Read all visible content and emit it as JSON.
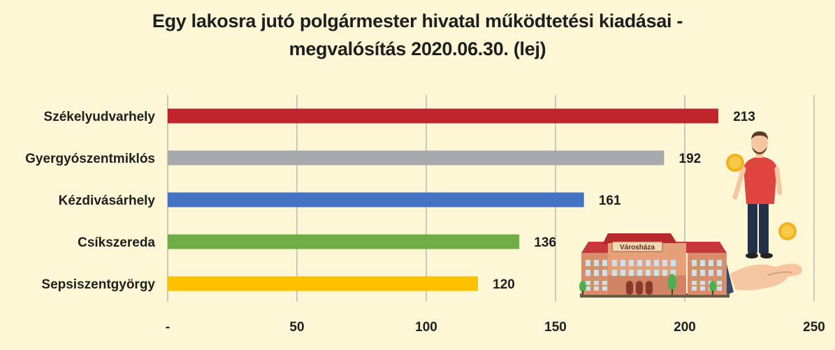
{
  "chart_data": {
    "type": "bar",
    "orientation": "horizontal",
    "title": "Egy lakosra jutó polgármester hivatal működtetési kiadásai -",
    "subtitle": "megvalósítás 2020.06.30. (lej)",
    "categories": [
      "Székelyudvarhely",
      "Gyergyószentmiklós",
      "Kézdivásárhely",
      "Csíkszereda",
      "Sepsiszentgyörgy"
    ],
    "values": [
      213,
      192,
      161,
      136,
      120
    ],
    "value_labels": [
      "213",
      "192",
      "161",
      "136",
      "120"
    ],
    "colors": [
      "#c0242c",
      "#a7a9ac",
      "#4472c4",
      "#70ad47",
      "#ffc000"
    ],
    "xlim": [
      0,
      250
    ],
    "xticks": [
      0,
      50,
      100,
      150,
      200,
      250
    ],
    "xtick_labels": [
      "-",
      "50",
      "100",
      "150",
      "200",
      "250"
    ],
    "grid": true,
    "legend": "none"
  },
  "illustration": {
    "building_sign": "Városháza",
    "icons": [
      "man-icon",
      "coin-icon",
      "hand-icon",
      "town-hall-icon",
      "tree-icon"
    ]
  }
}
